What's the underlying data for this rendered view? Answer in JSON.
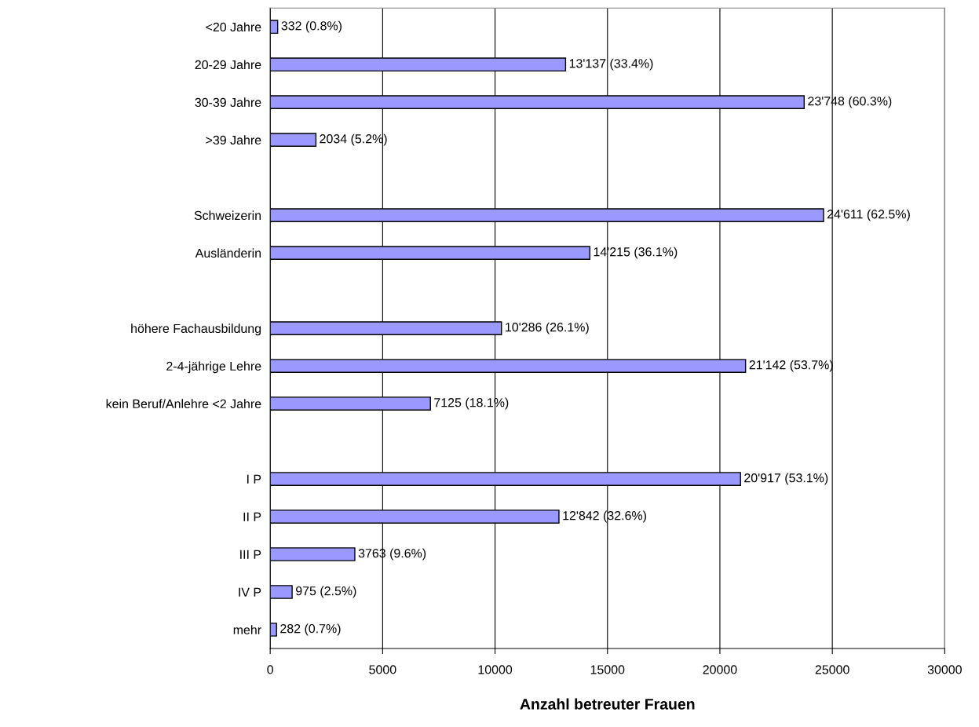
{
  "chart_data": {
    "type": "bar",
    "orientation": "horizontal",
    "xlabel": "Anzahl betreuter Frauen",
    "categories": [
      "<20 Jahre",
      "20-29 Jahre",
      "30-39 Jahre",
      ">39 Jahre",
      null,
      "Schweizerin",
      "Ausländerin",
      null,
      "höhere Fachausbildung",
      "2-4-jährige Lehre",
      "kein Beruf/Anlehre <2 Jahre",
      null,
      "I P",
      "II P",
      "III P",
      "IV P",
      "mehr"
    ],
    "values": [
      332,
      13137,
      23748,
      2034,
      null,
      24611,
      14215,
      null,
      10286,
      21142,
      7125,
      null,
      20917,
      12842,
      3763,
      975,
      282
    ],
    "value_labels": [
      "332 (0.8%)",
      "13'137 (33.4%)",
      "23'748 (60.3%)",
      "2034 (5.2%)",
      null,
      "24'611 (62.5%)",
      "14'215 (36.1%)",
      null,
      "10'286 (26.1%)",
      "21'142 (53.7%)",
      "7125 (18.1%)",
      null,
      "20'917 (53.1%)",
      "12'842 (32.6%)",
      "3763 (9.6%)",
      "975 (2.5%)",
      "282 (0.7%)"
    ],
    "color": "#9999ff",
    "xlim": [
      0,
      30000
    ],
    "xticks": [
      0,
      5000,
      10000,
      15000,
      20000,
      25000,
      30000
    ],
    "grid": "x",
    "legend": false
  }
}
